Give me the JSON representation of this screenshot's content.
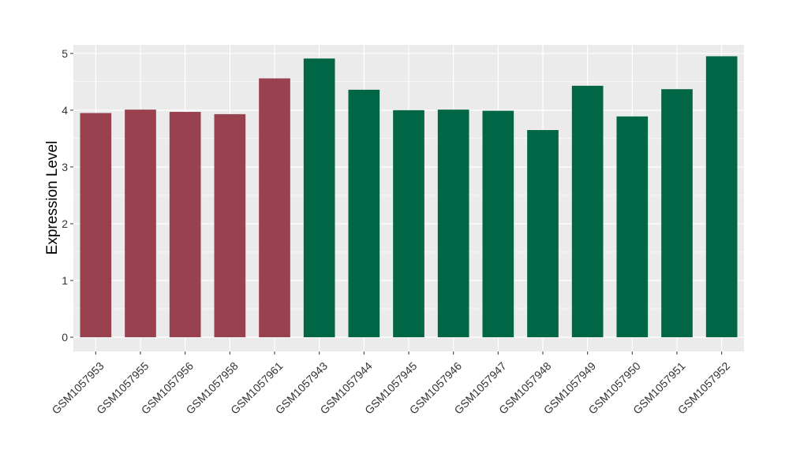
{
  "chart_data": {
    "type": "bar",
    "title": "",
    "xlabel": "",
    "ylabel": "Expression Level",
    "ylim": [
      -0.25,
      5.15
    ],
    "yticks": [
      0,
      1,
      2,
      3,
      4,
      5
    ],
    "grid": true,
    "legend": "none",
    "colors": {
      "group_a": "#9a4150",
      "group_b": "#006646",
      "panel": "#ebebeb",
      "grid": "#ffffff"
    },
    "categories": [
      "GSM1057953",
      "GSM1057955",
      "GSM1057956",
      "GSM1057958",
      "GSM1057961",
      "GSM1057943",
      "GSM1057944",
      "GSM1057945",
      "GSM1057946",
      "GSM1057947",
      "GSM1057948",
      "GSM1057949",
      "GSM1057950",
      "GSM1057951",
      "GSM1057952"
    ],
    "values": [
      3.95,
      4.01,
      3.97,
      3.93,
      4.56,
      4.91,
      4.36,
      4.0,
      4.01,
      3.99,
      3.65,
      4.43,
      3.89,
      4.37,
      4.95
    ],
    "groups": [
      "a",
      "a",
      "a",
      "a",
      "a",
      "b",
      "b",
      "b",
      "b",
      "b",
      "b",
      "b",
      "b",
      "b",
      "b"
    ]
  }
}
